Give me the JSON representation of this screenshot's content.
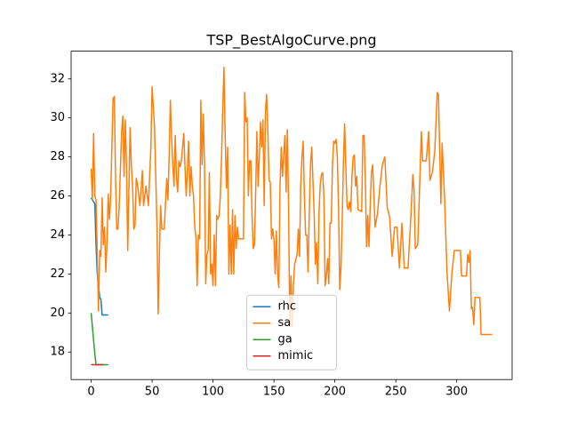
{
  "chart_data": {
    "type": "line",
    "title": "TSP_BestAlgoCurve.png",
    "xlim": [
      -16.45,
      345.45
    ],
    "xticks": [
      0,
      50,
      100,
      150,
      200,
      250,
      300
    ],
    "ylim": [
      16.59,
      33.42
    ],
    "yticks": [
      18,
      20,
      22,
      24,
      26,
      28,
      30,
      32
    ],
    "grid": false,
    "legend": "lower center",
    "series": [
      {
        "name": "rhc",
        "color": "#1f77b4",
        "x": [
          0,
          1,
          2,
          3,
          4,
          5,
          6,
          7,
          8,
          9,
          10,
          11,
          12,
          13,
          14
        ],
        "values": [
          25.9,
          25.8,
          25.7,
          25.6,
          23.5,
          22.0,
          21.5,
          20.8,
          20.7,
          19.9,
          19.9,
          19.9,
          19.9,
          19.9,
          19.9
        ]
      },
      {
        "name": "sa",
        "color": "#ff7f0e",
        "x": [
          0,
          1,
          2,
          3,
          4,
          5,
          6,
          7,
          8,
          9,
          10,
          11,
          12,
          13,
          14,
          15,
          16,
          17,
          18,
          19,
          20,
          21,
          22,
          23,
          25,
          26,
          27,
          28,
          29,
          30,
          31,
          32,
          33,
          34,
          35,
          36,
          37,
          38,
          40,
          42,
          43,
          45,
          47,
          49,
          50,
          52,
          54,
          55,
          56,
          57,
          58,
          60,
          62,
          63,
          64,
          65,
          66,
          67,
          68,
          69,
          70,
          71,
          72,
          73,
          74,
          76,
          77,
          78,
          80,
          81,
          82,
          83,
          84,
          85,
          86,
          87,
          88,
          89,
          90,
          91,
          92,
          93,
          94,
          95,
          96,
          97,
          98,
          99,
          100,
          101,
          102,
          103,
          104,
          105,
          106,
          107,
          108,
          109,
          110,
          111,
          112,
          113,
          114,
          115,
          116,
          117,
          118,
          119,
          120,
          121,
          125,
          126,
          127,
          128,
          129,
          130,
          131,
          132,
          133,
          134,
          135,
          136,
          137,
          138,
          139,
          140,
          141,
          142,
          143,
          144,
          145,
          146,
          147,
          148,
          149,
          150,
          151,
          152,
          153,
          154,
          155,
          156,
          157,
          158,
          159,
          160,
          161,
          162,
          163,
          164,
          165,
          166,
          167,
          169,
          170,
          171,
          172,
          173,
          174,
          175,
          176,
          177,
          178,
          179,
          180,
          181,
          182,
          183,
          184,
          185,
          186,
          187,
          188,
          189,
          190,
          191,
          192,
          193,
          194,
          195,
          196,
          197,
          198,
          199,
          200,
          201,
          202,
          203,
          204,
          205,
          206,
          207,
          208,
          209,
          210,
          211,
          212,
          213,
          214,
          215,
          216,
          217,
          218,
          219,
          222,
          223,
          224,
          225,
          226,
          227,
          228,
          229,
          230,
          231,
          233,
          235,
          237,
          239,
          241,
          243,
          245,
          247,
          249,
          251,
          253,
          255,
          257,
          260,
          262,
          264,
          265,
          266,
          268,
          271,
          272,
          275,
          277,
          278,
          280,
          282,
          284,
          285,
          287,
          288,
          290,
          292,
          294,
          296,
          298,
          303,
          304,
          308,
          309,
          310,
          311,
          312,
          313,
          314,
          315,
          319,
          320,
          329
        ],
        "values": [
          27.4,
          25.8,
          29.2,
          26,
          25.8,
          23,
          20.1,
          23.2,
          22.9,
          25.9,
          23.5,
          24.4,
          22.1,
          23.6,
          26.1,
          24.8,
          26,
          28.5,
          31,
          31.1,
          27,
          24.3,
          24.3,
          25.5,
          29.3,
          30.1,
          27,
          29.9,
          27.5,
          23.2,
          26.5,
          29.5,
          27.5,
          26.5,
          24.3,
          24.5,
          26.9,
          26.6,
          25.5,
          27.3,
          25.5,
          26.5,
          25.5,
          28.5,
          31.6,
          29.5,
          24.5,
          19.95,
          23,
          25.5,
          24.3,
          24.3,
          26.9,
          25.8,
          28,
          30.9,
          29,
          27.6,
          26.5,
          29.1,
          27,
          26.2,
          27.8,
          27.5,
          27.8,
          29.2,
          27.5,
          26,
          28.8,
          26,
          27.5,
          26.5,
          26,
          24.4,
          23.9,
          21.4,
          24,
          23.8,
          30.9,
          27.6,
          30.2,
          27.7,
          21.5,
          23,
          23.2,
          27.2,
          22,
          22.5,
          21.4,
          24,
          21.4,
          25,
          24.8,
          25,
          26,
          28,
          30.5,
          32.6,
          29,
          26.4,
          28.5,
          22,
          24.5,
          22,
          25.3,
          22,
          25,
          23.3,
          24.4,
          23.8,
          23.8,
          31.3,
          29.8,
          30,
          26,
          27.8,
          27.8,
          25,
          23.3,
          23.5,
          26.2,
          29.3,
          26.5,
          28,
          29.8,
          28.5,
          29.9,
          25.5,
          30.3,
          31.2,
          29.3,
          26.8,
          26.7,
          23.8,
          24.3,
          23.8,
          22,
          24.2,
          22,
          21.3,
          26.5,
          28.5,
          27,
          28.1,
          29.1,
          26.2,
          29.4,
          25.5,
          19.3,
          21.9,
          19.3,
          21.5,
          22.5,
          23,
          24.3,
          22.9,
          26.6,
          28,
          28.8,
          26,
          24,
          24,
          22.1,
          25.1,
          27.6,
          28.5,
          26.8,
          25.1,
          22.5,
          23.6,
          21.5,
          25.2,
          26.6,
          27.1,
          27.2,
          26,
          21.4,
          21.9,
          22.8,
          21.5,
          24.6,
          24.6,
          27.5,
          28.8,
          28.7,
          28.9,
          28,
          25.5,
          21.2,
          22.3,
          24.7,
          27.6,
          29.7,
          27.5,
          25.5,
          25.3,
          25.7,
          25.2,
          27,
          28,
          28.1,
          26.5,
          27,
          25.3,
          25.2,
          29.1,
          29.1,
          26.9,
          23.4,
          25,
          23.4,
          25.5,
          27.2,
          27.6,
          24.4,
          25.1,
          26.5,
          27.6,
          28,
          25.4,
          24.9,
          22.9,
          24.4,
          24.4,
          22.3,
          24.6,
          22.3,
          22.3,
          24.5,
          27.1,
          26.3,
          23.3,
          23.5,
          29.3,
          27.8,
          27.8,
          29.3,
          26.8,
          27.2,
          28.3,
          31.3,
          31.2,
          25.6,
          28.7,
          26,
          22.1,
          20.1,
          22,
          23.2,
          23.2,
          21.9,
          21.9,
          23,
          22.6,
          23.2,
          20.2,
          20.3,
          19.4,
          20.8,
          20.8,
          18.9,
          18.9
        ]
      },
      {
        "name": "ga",
        "color": "#2ca02c",
        "x": [
          0,
          1,
          2,
          3,
          4,
          5,
          6,
          7,
          8,
          9,
          10,
          11,
          12,
          13,
          14
        ],
        "values": [
          20.0,
          19.3,
          18.6,
          17.9,
          17.35,
          17.35,
          17.35,
          17.35,
          17.35,
          17.35,
          17.35,
          17.35,
          17.35,
          17.35,
          17.35
        ]
      },
      {
        "name": "mimic",
        "color": "#d62728",
        "x": [
          0,
          1,
          2,
          3,
          4,
          5,
          6,
          7,
          8,
          9,
          10
        ],
        "values": [
          17.35,
          17.35,
          17.35,
          17.35,
          17.35,
          17.35,
          17.35,
          17.35,
          17.35,
          17.35,
          17.35
        ]
      }
    ]
  }
}
